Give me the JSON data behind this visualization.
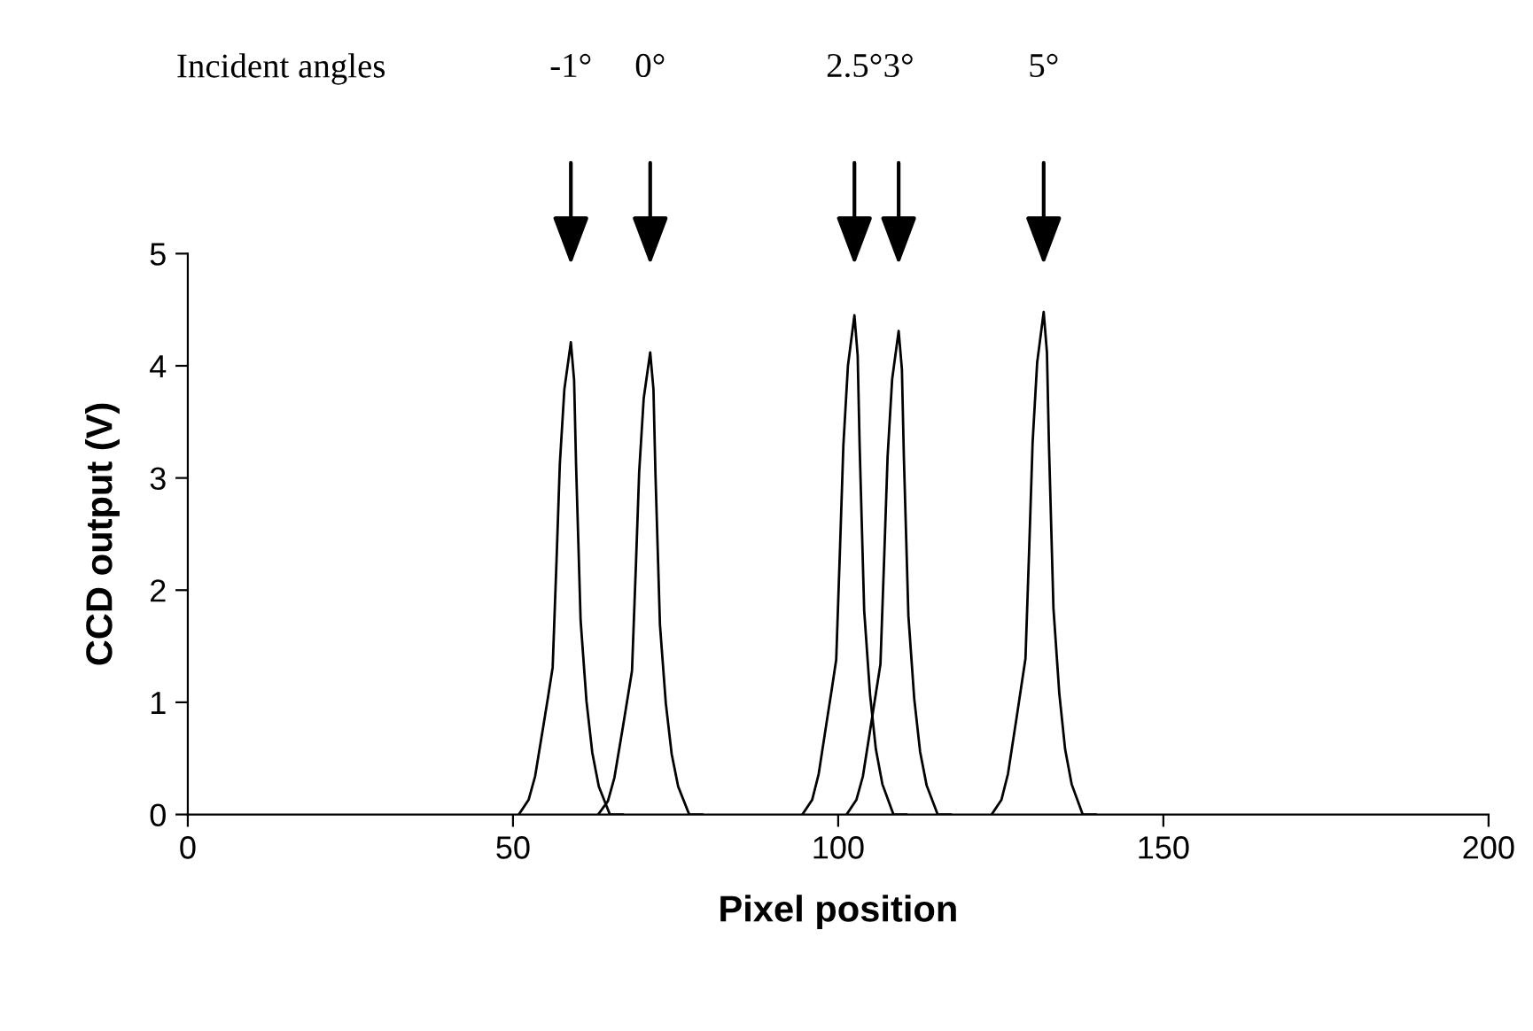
{
  "chart_data": {
    "type": "line",
    "xlabel": "Pixel position",
    "ylabel": "CCD output (V)",
    "xlim": [
      0,
      200
    ],
    "xticks": [
      0,
      50,
      100,
      150,
      200
    ],
    "ylim": [
      0,
      5
    ],
    "yticks": [
      0,
      1,
      2,
      3,
      4,
      5
    ],
    "grid": false,
    "legend": false,
    "marker": "none",
    "line_style": "solid",
    "series": [
      {
        "color": "#000000",
        "x": [
          50.9,
          52.4,
          53.4,
          54.7,
          55.4,
          56.1,
          56.7,
          57.2,
          57.9,
          58.9,
          59.4,
          59.7,
          60.4,
          61.3,
          62.2,
          63.2,
          64.9,
          66.9
        ],
        "values": [
          0,
          0.13,
          0.34,
          0.8,
          1.05,
          1.31,
          2.27,
          3.12,
          3.79,
          4.21,
          3.87,
          3.12,
          1.73,
          1.01,
          0.55,
          0.25,
          0,
          0
        ]
      },
      {
        "color": "#000000",
        "x": [
          63.1,
          64.6,
          65.6,
          66.9,
          67.6,
          68.3,
          68.9,
          69.4,
          70.1,
          71.1,
          71.6,
          71.9,
          72.6,
          73.5,
          74.4,
          75.4,
          77.1,
          79.1
        ],
        "values": [
          0,
          0.12,
          0.33,
          0.78,
          1.03,
          1.28,
          2.22,
          3.05,
          3.71,
          4.12,
          3.79,
          3.05,
          1.69,
          0.99,
          0.54,
          0.25,
          0,
          0
        ]
      },
      {
        "color": "#000000",
        "x": [
          94.5,
          96.0,
          97.0,
          98.3,
          99.0,
          99.7,
          100.3,
          100.8,
          101.5,
          102.5,
          103.0,
          103.3,
          104.0,
          104.9,
          105.8,
          106.8,
          108.5,
          110.5
        ],
        "values": [
          0,
          0.13,
          0.36,
          0.85,
          1.11,
          1.38,
          2.4,
          3.29,
          4.0,
          4.45,
          4.09,
          3.29,
          1.82,
          1.07,
          0.58,
          0.27,
          0,
          0
        ]
      },
      {
        "color": "#000000",
        "x": [
          101.3,
          102.8,
          103.8,
          105.1,
          105.8,
          106.5,
          107.1,
          107.6,
          108.3,
          109.3,
          109.8,
          110.1,
          110.8,
          111.7,
          112.6,
          113.6,
          115.3,
          117.3
        ],
        "values": [
          0,
          0.13,
          0.34,
          0.82,
          1.08,
          1.34,
          2.33,
          3.19,
          3.88,
          4.31,
          3.97,
          3.19,
          1.77,
          1.03,
          0.56,
          0.26,
          0,
          0
        ]
      },
      {
        "color": "#000000",
        "x": [
          123.6,
          125.1,
          126.1,
          127.4,
          128.1,
          128.8,
          129.4,
          129.9,
          130.6,
          131.6,
          132.1,
          132.4,
          133.1,
          134.0,
          134.9,
          135.9,
          137.6,
          139.6
        ],
        "values": [
          0,
          0.13,
          0.36,
          0.85,
          1.12,
          1.39,
          2.42,
          3.32,
          4.03,
          4.48,
          4.12,
          3.32,
          1.84,
          1.08,
          0.58,
          0.27,
          0,
          0
        ]
      }
    ],
    "annotations": [
      "Incident angles",
      "-1°",
      "0°",
      "2.5°",
      "3°",
      "5°"
    ]
  }
}
